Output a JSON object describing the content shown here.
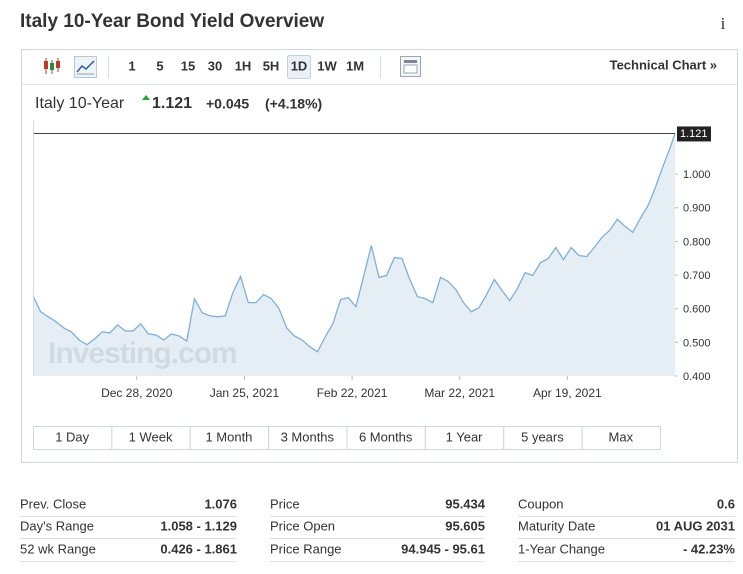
{
  "header": {
    "title": "Italy 10-Year Bond Yield Overview",
    "info": "i"
  },
  "toolbar": {
    "intervals": [
      "1",
      "5",
      "15",
      "30",
      "1H",
      "5H",
      "1D",
      "1W",
      "1M"
    ],
    "selected_index": 6,
    "link": "Technical Chart »"
  },
  "quote": {
    "last": "1.121",
    "change": "+0.045",
    "change_pct": "(+4.18%)"
  },
  "chart_data": {
    "type": "area",
    "watermark": "Investing.com",
    "x": [
      "2020-12-01",
      "2020-12-03",
      "2020-12-05",
      "2020-12-07",
      "2020-12-09",
      "2020-12-11",
      "2020-12-13",
      "2020-12-15",
      "2020-12-17",
      "2020-12-19",
      "2020-12-21",
      "2020-12-23",
      "2020-12-25",
      "2020-12-27",
      "2020-12-29",
      "2020-12-31",
      "2021-01-02",
      "2021-01-04",
      "2021-01-06",
      "2021-01-08",
      "2021-01-10",
      "2021-01-12",
      "2021-01-14",
      "2021-01-16",
      "2021-01-18",
      "2021-01-20",
      "2021-01-22",
      "2021-01-24",
      "2021-01-26",
      "2021-01-28",
      "2021-01-30",
      "2021-02-01",
      "2021-02-03",
      "2021-02-05",
      "2021-02-07",
      "2021-02-09",
      "2021-02-11",
      "2021-02-13",
      "2021-02-15",
      "2021-02-17",
      "2021-02-19",
      "2021-02-21",
      "2021-02-23",
      "2021-02-25",
      "2021-02-27",
      "2021-03-01",
      "2021-03-03",
      "2021-03-05",
      "2021-03-07",
      "2021-03-09",
      "2021-03-11",
      "2021-03-13",
      "2021-03-15",
      "2021-03-17",
      "2021-03-19",
      "2021-03-21",
      "2021-03-23",
      "2021-03-25",
      "2021-03-27",
      "2021-03-29",
      "2021-03-31",
      "2021-04-02",
      "2021-04-04",
      "2021-04-06",
      "2021-04-08",
      "2021-04-10",
      "2021-04-12",
      "2021-04-14",
      "2021-04-16",
      "2021-04-18",
      "2021-04-20",
      "2021-04-22",
      "2021-04-24",
      "2021-04-26",
      "2021-04-28",
      "2021-04-30",
      "2021-05-02",
      "2021-05-04",
      "2021-05-06",
      "2021-05-08",
      "2021-05-10",
      "2021-05-12",
      "2021-05-14",
      "2021-05-16",
      "2021-05-17"
    ],
    "series": [
      {
        "name": "Italy 10-Year",
        "color": "#7fb0d8",
        "fill": "#e2ecf3",
        "values": [
          0.639,
          0.591,
          0.576,
          0.561,
          0.543,
          0.531,
          0.507,
          0.493,
          0.51,
          0.531,
          0.528,
          0.552,
          0.534,
          0.534,
          0.555,
          0.525,
          0.522,
          0.507,
          0.525,
          0.519,
          0.504,
          0.63,
          0.588,
          0.579,
          0.576,
          0.579,
          0.648,
          0.696,
          0.618,
          0.618,
          0.642,
          0.63,
          0.6,
          0.543,
          0.519,
          0.507,
          0.487,
          0.472,
          0.516,
          0.555,
          0.627,
          0.633,
          0.606,
          0.696,
          0.788,
          0.693,
          0.699,
          0.752,
          0.749,
          0.687,
          0.636,
          0.63,
          0.618,
          0.693,
          0.681,
          0.657,
          0.618,
          0.591,
          0.603,
          0.642,
          0.687,
          0.654,
          0.624,
          0.66,
          0.707,
          0.699,
          0.737,
          0.749,
          0.782,
          0.746,
          0.782,
          0.758,
          0.755,
          0.782,
          0.812,
          0.833,
          0.866,
          0.845,
          0.827,
          0.869,
          0.907,
          0.964,
          1.027,
          1.087,
          1.121
        ]
      }
    ],
    "xlim": [
      "2020-12-01",
      "2021-05-17"
    ],
    "ylim": [
      0.4,
      1.161
    ],
    "xticks": [
      {
        "value": "2020-12-28",
        "label": "Dec 28, 2020"
      },
      {
        "value": "2021-01-25",
        "label": "Jan 25, 2021"
      },
      {
        "value": "2021-02-22",
        "label": "Feb 22, 2021"
      },
      {
        "value": "2021-03-22",
        "label": "Mar 22, 2021"
      },
      {
        "value": "2021-04-19",
        "label": "Apr 19, 2021"
      }
    ],
    "yticks": [
      {
        "value": 0.4,
        "label": "0.400"
      },
      {
        "value": 0.5,
        "label": "0.500"
      },
      {
        "value": 0.6,
        "label": "0.600"
      },
      {
        "value": 0.7,
        "label": "0.700"
      },
      {
        "value": 0.8,
        "label": "0.800"
      },
      {
        "value": 0.9,
        "label": "0.900"
      },
      {
        "value": 1.0,
        "label": "1.000"
      }
    ],
    "grid": false
  },
  "range_buttons": [
    "1 Day",
    "1 Week",
    "1 Month",
    "3 Months",
    "6 Months",
    "1 Year",
    "5 years",
    "Max"
  ],
  "stats": [
    [
      {
        "label": "Prev. Close",
        "value": "1.076"
      },
      {
        "label": "Day's Range",
        "value": "1.058 - 1.129"
      },
      {
        "label": "52 wk Range",
        "value": "0.426 - 1.861"
      }
    ],
    [
      {
        "label": "Price",
        "value": "95.434"
      },
      {
        "label": "Price Open",
        "value": "95.605"
      },
      {
        "label": "Price Range",
        "value": "94.945 - 95.61"
      }
    ],
    [
      {
        "label": "Coupon",
        "value": "0.6"
      },
      {
        "label": "Maturity Date",
        "value": "01 AUG 2031"
      },
      {
        "label": "1-Year Change",
        "value": "- 42.23%"
      }
    ]
  ]
}
